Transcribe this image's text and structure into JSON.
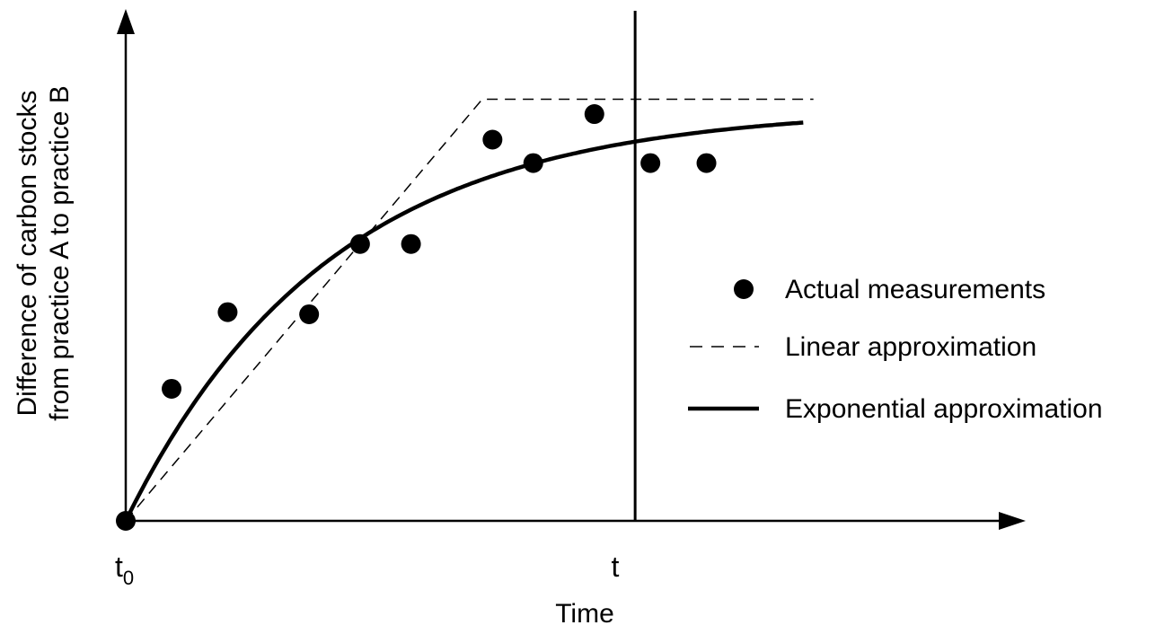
{
  "chart_data": {
    "type": "scatter",
    "xlabel": "Time",
    "ylabel_lines": [
      "Difference of carbon stocks",
      "from practice A to practice B"
    ],
    "x_ticks": [
      {
        "base": "t",
        "sub": "0",
        "x": 0
      },
      {
        "base": "t",
        "sub": "",
        "x": 10
      }
    ],
    "xlim": [
      0,
      14
    ],
    "ylim": [
      0,
      10.5
    ],
    "marker_line_x": 10,
    "series": [
      {
        "name": "Actual measurements",
        "kind": "points",
        "points": [
          [
            0,
            0
          ],
          [
            0.9,
            3.1
          ],
          [
            2.0,
            4.9
          ],
          [
            3.6,
            4.85
          ],
          [
            4.6,
            6.5
          ],
          [
            5.6,
            6.5
          ],
          [
            7.2,
            8.95
          ],
          [
            8.0,
            8.4
          ],
          [
            9.2,
            9.55
          ],
          [
            10.3,
            8.4
          ],
          [
            11.4,
            8.4
          ]
        ]
      },
      {
        "name": "Linear approximation",
        "kind": "dashed-line",
        "points": [
          [
            0,
            0
          ],
          [
            7.0,
            9.9
          ],
          [
            13.5,
            9.9
          ]
        ]
      },
      {
        "name": "Exponential approximation",
        "kind": "solid-line",
        "asymptote": 9.7,
        "rate": 0.25,
        "x_max": 13.3
      }
    ]
  }
}
